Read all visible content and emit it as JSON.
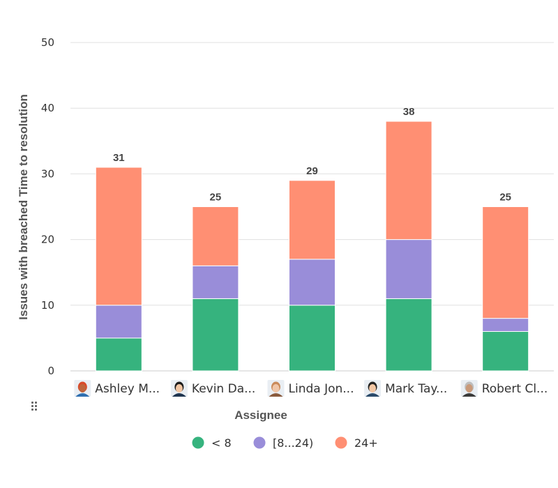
{
  "chart_data": {
    "type": "bar",
    "stacked": true,
    "categories": [
      "Ashley M...",
      "Kevin Da...",
      "Linda Jon...",
      "Mark Tay...",
      "Robert Cl..."
    ],
    "series": [
      {
        "name": "< 8",
        "values": [
          5,
          11,
          10,
          11,
          6
        ],
        "color": "#36b37e"
      },
      {
        "name": "[8...24)",
        "values": [
          5,
          5,
          7,
          9,
          2
        ],
        "color": "#998dd9"
      },
      {
        "name": "24+",
        "values": [
          21,
          9,
          12,
          18,
          17
        ],
        "color": "#ff8f73"
      }
    ],
    "totals": [
      31,
      25,
      29,
      38,
      25
    ],
    "xlabel": "Assignee",
    "ylabel": "Issues with breached Time to resolution",
    "ylim": [
      0,
      50
    ],
    "yticks": [
      0,
      10,
      20,
      30,
      40,
      50
    ],
    "grid": true,
    "legend_position": "bottom"
  },
  "avatars": [
    {
      "skin": "#c0643c",
      "hair": "#d94a2a",
      "shirt": "#2f6fb0"
    },
    {
      "skin": "#f2c7a5",
      "hair": "#1c1c1c",
      "shirt": "#1f3550"
    },
    {
      "skin": "#f0c6a8",
      "hair": "#c98a5a",
      "shirt": "#8a5a3c"
    },
    {
      "skin": "#f2c7a5",
      "hair": "#222222",
      "shirt": "#2a4a6a"
    },
    {
      "skin": "#c99a7a",
      "hair": "#bdbdbd",
      "shirt": "#3a3a3a"
    }
  ]
}
